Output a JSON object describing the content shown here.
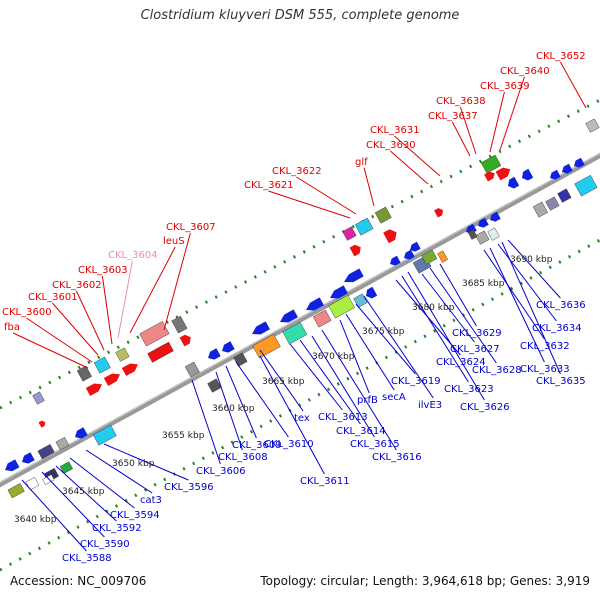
{
  "title": "Clostridium kluyveri DSM 555, complete genome",
  "footer": {
    "accession_label": "Accession: NC_009706",
    "stats_label": "Topology: circular; Length: 3,964,618 bp; Genes: 3,919"
  },
  "colors": {
    "forward_label": "#dd0000",
    "reverse_label": "#0000cc",
    "muted_label": "#ee88bb",
    "forward_gene": "#ee1111",
    "reverse_gene": "#1122dd",
    "backbone": "#888888",
    "tick_dot": "#228822"
  },
  "position_labels": [
    "3640 kbp",
    "3645 kbp",
    "3650 kbp",
    "3655 kbp",
    "3660 kbp",
    "3665 kbp",
    "3670 kbp",
    "3675 kbp",
    "3680 kbp",
    "3685 kbp",
    "3690 kbp"
  ],
  "forward_gene_labels": [
    "fba",
    "CKL_3600",
    "CKL_3601",
    "CKL_3602",
    "CKL_3603",
    "CKL_3604",
    "leuS",
    "CKL_3607",
    "CKL_3621",
    "CKL_3622",
    "glf",
    "CKL_3630",
    "CKL_3631",
    "CKL_3637",
    "CKL_3638",
    "CKL_3639",
    "CKL_3640",
    "CKL_3652"
  ],
  "reverse_gene_labels": [
    "CKL_3588",
    "CKL_3590",
    "CKL_3592",
    "CKL_3594",
    "cat3",
    "CKL_3596",
    "CKL_3606",
    "CKL_3608",
    "CKL_3609",
    "CKL_3610",
    "CKL_3611",
    "tex",
    "CKL_3613",
    "CKL_3614",
    "CKL_3615",
    "CKL_3616",
    "prfB",
    "secA",
    "CKL_3619",
    "ilvE3",
    "CKL_3624",
    "CKL_3623",
    "CKL_3626",
    "CKL_3627",
    "CKL_3628",
    "CKL_3629",
    "CKL_3632",
    "CKL_3633",
    "CKL_3634",
    "CKL_3635",
    "CKL_3636"
  ]
}
